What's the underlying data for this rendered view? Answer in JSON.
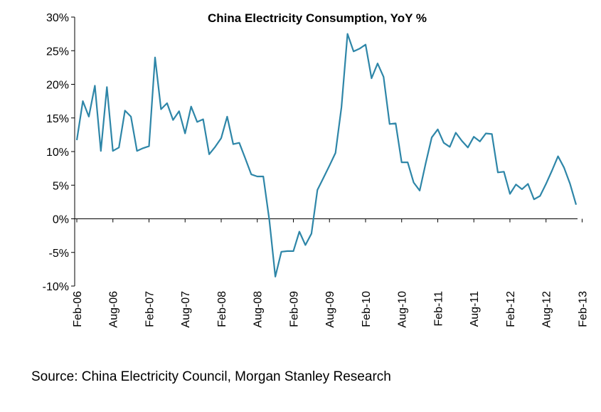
{
  "chart_data": {
    "type": "line",
    "title": "China Electricity Consumption, YoY %",
    "xlabel": "",
    "ylabel": "",
    "ylim": [
      -10,
      30
    ],
    "yticks": [
      30,
      25,
      20,
      15,
      10,
      5,
      0,
      -5,
      -10
    ],
    "ytick_labels": [
      "30%",
      "25%",
      "20%",
      "15%",
      "10%",
      "5%",
      "0%",
      "-5%",
      "-10%"
    ],
    "xtick_labels": [
      "Feb-06",
      "Aug-06",
      "Feb-07",
      "Aug-07",
      "Feb-08",
      "Aug-08",
      "Feb-09",
      "Aug-09",
      "Feb-10",
      "Aug-10",
      "Feb-11",
      "Aug-11",
      "Feb-12",
      "Aug-12",
      "Feb-13"
    ],
    "x_start": "Feb-06",
    "x_end": "Apr-13",
    "grid": false,
    "line_color": "#2E86A8",
    "series": [
      {
        "name": "",
        "values": [
          11.7,
          17.5,
          15.2,
          19.8,
          10.1,
          19.6,
          10.1,
          10.6,
          16.1,
          15.2,
          10.1,
          10.5,
          10.8,
          24.0,
          16.3,
          17.2,
          14.7,
          16.0,
          12.7,
          16.7,
          14.4,
          14.8,
          9.6,
          10.7,
          12.0,
          15.2,
          11.1,
          11.3,
          9.0,
          6.6,
          6.3,
          6.3,
          -0.2,
          -8.6,
          -4.9,
          -4.8,
          -4.8,
          -1.9,
          -3.9,
          -2.2,
          4.3,
          6.1,
          7.9,
          9.8,
          16.6,
          27.5,
          24.9,
          25.3,
          25.9,
          20.9,
          23.1,
          21.1,
          14.1,
          14.2,
          8.4,
          8.4,
          5.4,
          4.2,
          8.3,
          12.1,
          13.3,
          11.3,
          10.7,
          12.8,
          11.6,
          10.6,
          12.2,
          11.5,
          12.7,
          12.6,
          6.9,
          7.0,
          3.7,
          5.1,
          4.4,
          5.2,
          2.9,
          3.4,
          5.2,
          7.2,
          9.3,
          7.6,
          5.2,
          2.1
        ]
      }
    ]
  },
  "source": "Source: China Electricity Council, Morgan Stanley Research"
}
